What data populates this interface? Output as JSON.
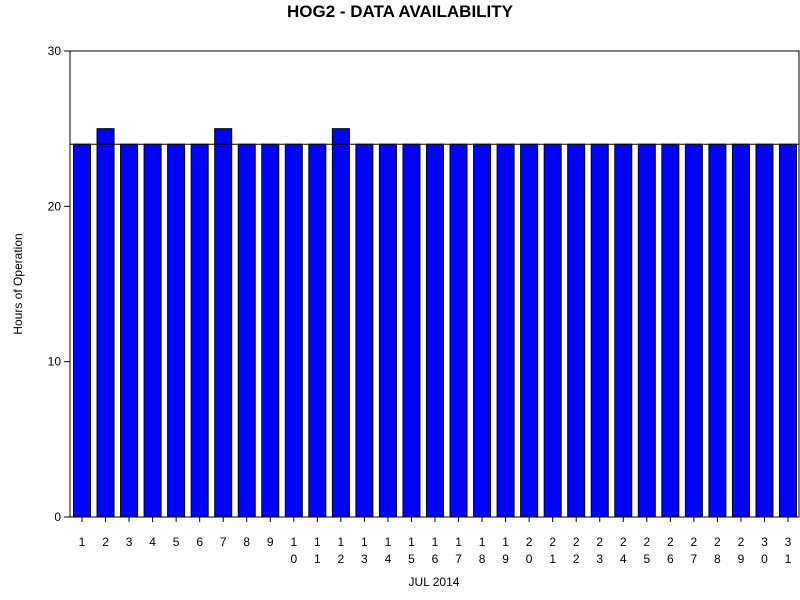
{
  "chart_data": {
    "type": "bar",
    "title": "HOG2 - DATA AVAILABILITY",
    "xlabel": "JUL 2014",
    "ylabel": "Hours of Operation",
    "categories": [
      "1",
      "2",
      "3",
      "4",
      "5",
      "6",
      "7",
      "8",
      "9",
      "10",
      "11",
      "12",
      "13",
      "14",
      "15",
      "16",
      "17",
      "18",
      "19",
      "20",
      "21",
      "22",
      "23",
      "24",
      "25",
      "26",
      "27",
      "28",
      "29",
      "30",
      "31"
    ],
    "values": [
      24,
      25,
      24,
      24,
      24,
      24,
      25,
      24,
      24,
      24,
      24,
      25,
      24,
      24,
      24,
      24,
      24,
      24,
      24,
      24,
      24,
      24,
      24,
      24,
      24,
      24,
      24,
      24,
      24,
      24,
      24
    ],
    "ylim": [
      0,
      30
    ],
    "yticks": [
      0,
      10,
      20,
      30
    ],
    "reference_line": 24,
    "grid": false,
    "legend": "none",
    "bar_color": "#0000ff",
    "bar_edge_color": "#000000"
  }
}
